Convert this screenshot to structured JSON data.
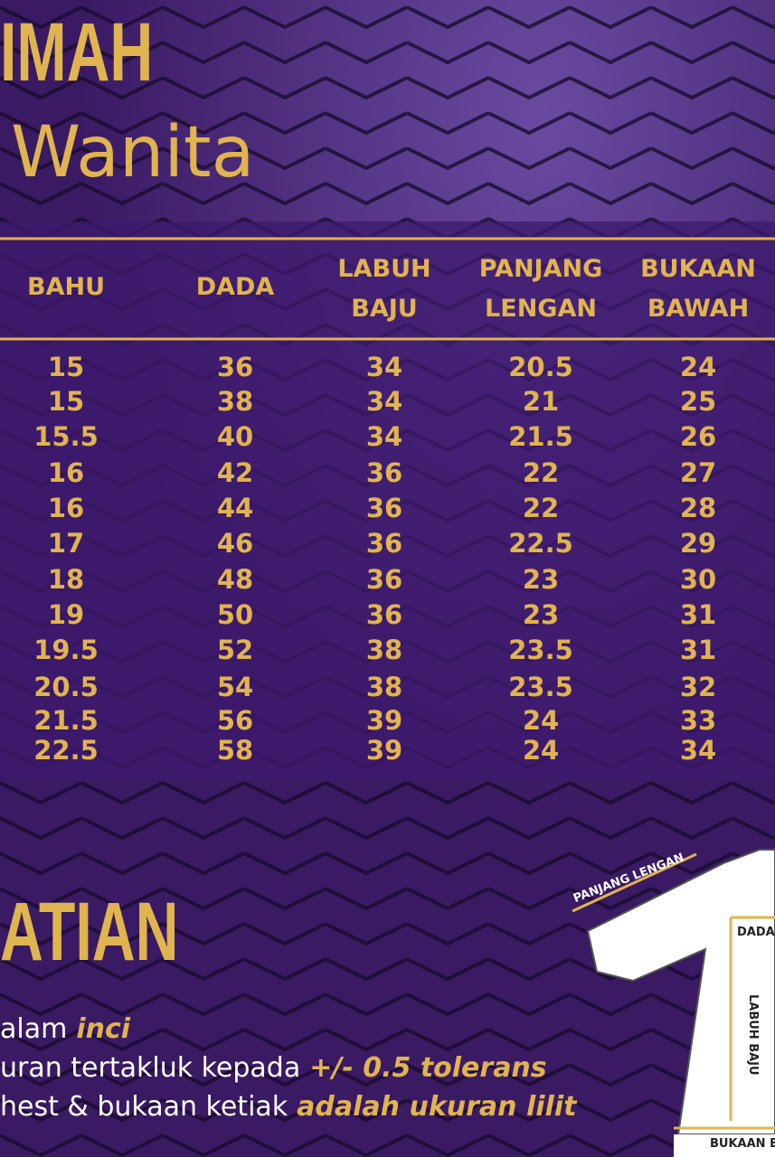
{
  "header": {
    "title": "IMAH",
    "subtitle": "Wanita"
  },
  "table": {
    "columns": [
      [
        "BAHU"
      ],
      [
        "DADA"
      ],
      [
        "LABUH",
        "BAJU"
      ],
      [
        "PANJANG",
        "LENGAN"
      ],
      [
        "BUKAAN",
        "BAWAH"
      ]
    ],
    "rows": [
      [
        15,
        36,
        34,
        20.5,
        24
      ],
      [
        15,
        38,
        34,
        21,
        25
      ],
      [
        15.5,
        40,
        34,
        21.5,
        26
      ],
      [
        16,
        42,
        36,
        22,
        27
      ],
      [
        16,
        44,
        36,
        22,
        28
      ],
      [
        17,
        46,
        36,
        22.5,
        29
      ],
      [
        18,
        48,
        36,
        23,
        30
      ],
      [
        19,
        50,
        36,
        23,
        31
      ],
      [
        19.5,
        52,
        38,
        23.5,
        31
      ],
      [
        20.5,
        54,
        38,
        23.5,
        32
      ],
      [
        21.5,
        56,
        39,
        24,
        33
      ],
      [
        22.5,
        58,
        39,
        24,
        34
      ]
    ]
  },
  "notes": {
    "heading": "ATIAN",
    "lines": [
      {
        "text": "alam",
        "emphasis": "inci"
      },
      {
        "text": "uran tertakluk kepada",
        "emphasis": "+/- 0.5 tolerans"
      },
      {
        "text": "hest & bukaan ketiak",
        "emphasis": "adalah ukuran lilit"
      }
    ]
  },
  "diagram": {
    "sleeve": "PANJANG LENGAN",
    "chest": "DADA",
    "length": "LABUH BAJU",
    "hem": "BUKAAN B"
  }
}
